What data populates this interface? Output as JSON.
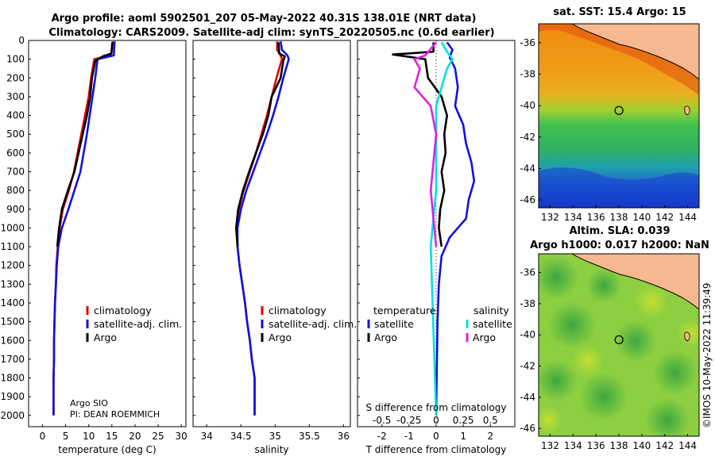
{
  "title_line1": "Argo profile: aoml 5902501_207 05-May-2022 40.31S 138.01E (NRT data)",
  "title_line2": "Climatology: CARS2009. Satellite-adj clim: synTS_20220505.nc (0.6d earlier)",
  "credit_line1": "Argo SIO",
  "credit_line2": "PI: DEAN ROEMMICH",
  "watermark": "©IMOS 10-May-2022 11:39:49",
  "colors": {
    "climatology": "#e00000",
    "satellite": "#1010e0",
    "argo": "#000000",
    "sat_salinity": "#00e0e0",
    "argo_salinity": "#e020e0"
  },
  "chart_data": [
    {
      "type": "line",
      "name": "temperature",
      "xlabel": "temperature (deg C)",
      "xlim": [
        -3,
        31
      ],
      "xticks": [
        0,
        5,
        10,
        15,
        20,
        25,
        30
      ],
      "ylim": [
        2060,
        0
      ],
      "yticks": [
        0,
        100,
        200,
        300,
        400,
        500,
        600,
        700,
        800,
        900,
        1000,
        1100,
        1200,
        1300,
        1400,
        1500,
        1600,
        1700,
        1800,
        1900,
        2000
      ],
      "legend": [
        "climatology",
        "satellite-adj. clim.",
        "Argo"
      ],
      "series": [
        {
          "name": "climatology",
          "color": "#e00000",
          "x": [
            15.2,
            15.0,
            14.7,
            11.2,
            10.5,
            10.0,
            9.2,
            8.4,
            7.6,
            6.8,
            5.7,
            4.4,
            3.7,
            3.3,
            3.0,
            2.9,
            2.7,
            2.6,
            2.5,
            2.5,
            2.4,
            2.4
          ],
          "y": [
            5,
            50,
            80,
            100,
            200,
            300,
            400,
            500,
            600,
            700,
            800,
            900,
            1000,
            1100,
            1200,
            1300,
            1400,
            1500,
            1600,
            1700,
            1800,
            2000
          ]
        },
        {
          "name": "satellite-adj. clim.",
          "color": "#1010e0",
          "x": [
            15.6,
            15.5,
            15.4,
            11.9,
            11.4,
            10.8,
            10.2,
            9.6,
            8.9,
            8.2,
            6.9,
            5.6,
            4.2,
            3.4,
            3.1,
            2.9,
            2.7,
            2.6,
            2.5,
            2.5,
            2.4,
            2.4
          ],
          "y": [
            5,
            50,
            80,
            100,
            200,
            300,
            400,
            500,
            600,
            700,
            800,
            900,
            1000,
            1100,
            1200,
            1300,
            1400,
            1500,
            1600,
            1700,
            1800,
            2000
          ]
        },
        {
          "name": "Argo",
          "color": "#000000",
          "x": [
            15.1,
            14.9,
            13.0,
            11.4,
            10.7,
            10.3,
            9.6,
            8.7,
            7.8,
            6.9,
            5.5,
            4.2,
            3.6,
            3.2
          ],
          "y": [
            10,
            70,
            85,
            110,
            200,
            300,
            400,
            500,
            600,
            700,
            800,
            900,
            1000,
            1100
          ]
        }
      ]
    },
    {
      "type": "line",
      "name": "salinity",
      "xlabel": "salinity",
      "xlim": [
        33.8,
        36.1
      ],
      "xticks": [
        34,
        34.5,
        35,
        35.5,
        36
      ],
      "ylim": [
        2060,
        0
      ],
      "legend": [
        "climatology",
        "satellite-adj. clim.",
        "Argo"
      ],
      "series": [
        {
          "name": "climatology",
          "color": "#e00000",
          "x": [
            35.03,
            35.03,
            35.08,
            35.1,
            35.02,
            34.95,
            34.88,
            34.8,
            34.72,
            34.63,
            34.54,
            34.47,
            34.44,
            34.45,
            34.48,
            34.52,
            34.56,
            34.59,
            34.63,
            34.66,
            34.7,
            34.7
          ],
          "y": [
            5,
            50,
            80,
            100,
            200,
            300,
            400,
            500,
            600,
            700,
            800,
            900,
            1000,
            1100,
            1200,
            1300,
            1400,
            1500,
            1600,
            1700,
            1800,
            2000
          ]
        },
        {
          "name": "satellite-adj. clim.",
          "color": "#1010e0",
          "x": [
            35.08,
            35.1,
            35.18,
            35.2,
            35.12,
            35.05,
            34.97,
            34.88,
            34.78,
            34.68,
            34.58,
            34.5,
            34.45,
            34.45,
            34.48,
            34.52,
            34.56,
            34.59,
            34.63,
            34.66,
            34.7,
            34.7
          ],
          "y": [
            5,
            50,
            80,
            100,
            200,
            300,
            400,
            500,
            600,
            700,
            800,
            900,
            1000,
            1100,
            1200,
            1300,
            1400,
            1500,
            1600,
            1700,
            1800,
            2000
          ]
        },
        {
          "name": "Argo",
          "color": "#000000",
          "x": [
            35.05,
            35.06,
            35.14,
            35.12,
            35.08,
            34.95,
            34.9,
            34.82,
            34.72,
            34.62,
            34.53,
            34.46,
            34.43,
            34.45
          ],
          "y": [
            10,
            70,
            85,
            110,
            200,
            300,
            400,
            500,
            600,
            700,
            800,
            900,
            1000,
            1100
          ]
        }
      ]
    },
    {
      "type": "line",
      "name": "difference",
      "xlabel": "T difference from climatology",
      "xlabel2": "S difference from climatology",
      "xlim": [
        -2.9,
        2.9
      ],
      "xticks": [
        -2,
        -1,
        0,
        1,
        2
      ],
      "xticks_s_values": [
        -0.5,
        -0.25,
        0,
        0.25,
        0.5
      ],
      "xticks_s_labels": [
        "-0.5",
        "-0.25",
        "0",
        "0.25",
        "0.5"
      ],
      "ylim": [
        2060,
        0
      ],
      "legend_temperature_title": "temperature",
      "legend_salinity_title": "salinity",
      "legend_temperature": [
        "satellite",
        "Argo"
      ],
      "legend_salinity": [
        "satellite",
        "Argo"
      ],
      "series": [
        {
          "name": "T satellite",
          "color": "#1010e0",
          "x": [
            0.4,
            0.6,
            0.5,
            0.7,
            0.8,
            0.7,
            1.0,
            1.1,
            1.3,
            1.4,
            1.2,
            1.1,
            0.5,
            0.2,
            0.1,
            0.05,
            0.0
          ],
          "y": [
            10,
            50,
            90,
            150,
            250,
            350,
            450,
            550,
            650,
            750,
            850,
            950,
            1050,
            1150,
            1300,
            1500,
            2000
          ]
        },
        {
          "name": "T Argo",
          "color": "#000000",
          "x": [
            -0.1,
            -0.1,
            -1.6,
            -0.4,
            -0.3,
            0.2,
            0.4,
            0.3,
            0.35,
            0.2,
            0.3,
            0.15,
            0.1,
            0.2
          ],
          "y": [
            10,
            60,
            75,
            100,
            200,
            300,
            400,
            500,
            600,
            700,
            800,
            900,
            1000,
            1100
          ]
        },
        {
          "name": "S satellite",
          "color": "#00e0e0",
          "x": [
            0.05,
            0.1,
            0.15,
            0.1,
            0.05,
            0.0,
            0.0,
            0.0,
            -0.05,
            0.0
          ],
          "y": [
            10,
            60,
            100,
            150,
            250,
            350,
            500,
            800,
            1100,
            2000
          ]
        },
        {
          "name": "S Argo",
          "color": "#e020e0",
          "x": [
            0.0,
            -0.1,
            -0.2,
            -0.15,
            -0.2,
            -0.05,
            0.0,
            -0.05,
            0.0
          ],
          "y": [
            10,
            80,
            100,
            150,
            250,
            350,
            500,
            800,
            1100
          ]
        }
      ]
    },
    {
      "type": "heatmap",
      "name": "sst-map",
      "title": "sat. SST: 15.4 Argo: 15",
      "xlim": [
        131,
        145
      ],
      "ylim": [
        -46.5,
        -34.8
      ],
      "xticks": [
        132,
        134,
        136,
        138,
        140,
        142,
        144
      ],
      "yticks": [
        -36,
        -38,
        -40,
        -42,
        -44,
        -46
      ],
      "marker": {
        "lon": 138.01,
        "lat": -40.31
      }
    },
    {
      "type": "heatmap",
      "name": "sla-map",
      "title": "Altim. SLA: 0.039",
      "subtitle": "Argo h1000: 0.017 h2000: NaN",
      "xlim": [
        131,
        145
      ],
      "ylim": [
        -46.5,
        -34.8
      ],
      "xticks": [
        132,
        134,
        136,
        138,
        140,
        142,
        144
      ],
      "yticks": [
        -36,
        -38,
        -40,
        -42,
        -44,
        -46
      ],
      "marker": {
        "lon": 138.01,
        "lat": -40.31
      }
    }
  ]
}
